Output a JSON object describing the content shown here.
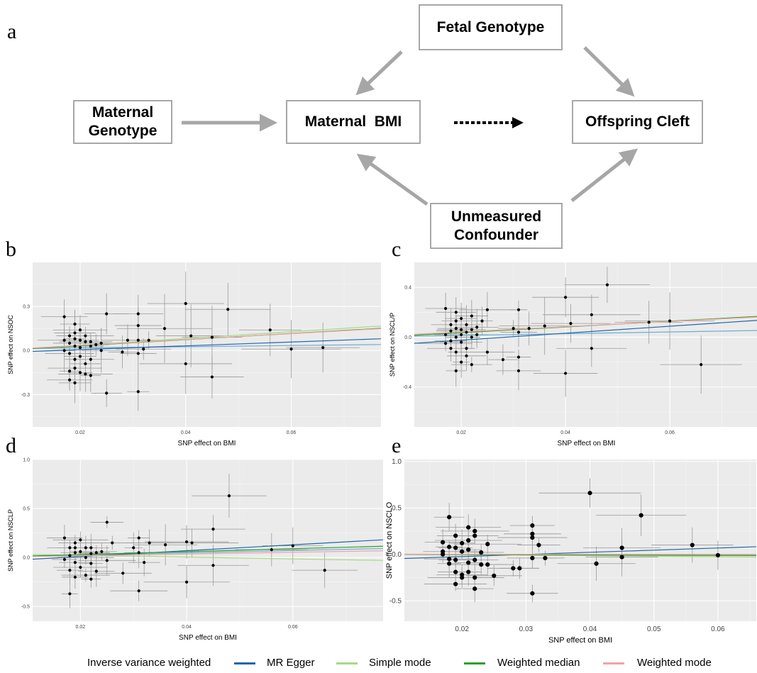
{
  "diagram": {
    "panel_label": "a",
    "nodes": {
      "fetal": "Fetal Genotype",
      "maternal_genotype": "Maternal\nGenotype",
      "maternal_bmi": "Maternal  BMI",
      "offspring": "Offspring Cleft",
      "confounder": "Unmeasured\nConfounder"
    }
  },
  "chart_data": [
    {
      "type": "scatter",
      "panel_label": "b",
      "xlabel": "SNP effect on BMI",
      "ylabel": "SNP effect on NSOC",
      "xlim": [
        0.011,
        0.077
      ],
      "ylim": [
        -0.52,
        0.6
      ],
      "xticks": [
        0.02,
        0.04,
        0.06
      ],
      "xtick_labels": [
        "0.02",
        "0.04",
        "0.06"
      ],
      "yticks": [
        -0.3,
        0.0,
        0.3
      ],
      "ytick_labels": [
        "-0.3",
        "0.0",
        "0.3"
      ],
      "points": [
        [
          0.017,
          0.23
        ],
        [
          0.017,
          0.07
        ],
        [
          0.017,
          0.0
        ],
        [
          0.018,
          0.1
        ],
        [
          0.018,
          0.05
        ],
        [
          0.018,
          -0.02
        ],
        [
          0.018,
          -0.14
        ],
        [
          0.018,
          -0.2
        ],
        [
          0.019,
          0.18
        ],
        [
          0.019,
          0.12
        ],
        [
          0.019,
          0.08
        ],
        [
          0.019,
          0.03
        ],
        [
          0.019,
          -0.06
        ],
        [
          0.019,
          -0.12
        ],
        [
          0.019,
          -0.22
        ],
        [
          0.02,
          0.14
        ],
        [
          0.02,
          0.07
        ],
        [
          0.02,
          0.02
        ],
        [
          0.02,
          -0.04
        ],
        [
          0.02,
          -0.15
        ],
        [
          0.021,
          0.1
        ],
        [
          0.021,
          0.06
        ],
        [
          0.021,
          -0.09
        ],
        [
          0.021,
          -0.16
        ],
        [
          0.022,
          0.06
        ],
        [
          0.022,
          0.03
        ],
        [
          0.022,
          -0.06
        ],
        [
          0.022,
          -0.17
        ],
        [
          0.023,
          0.04
        ],
        [
          0.024,
          0.05
        ],
        [
          0.024,
          0.0
        ],
        [
          0.025,
          0.25
        ],
        [
          0.025,
          -0.29
        ],
        [
          0.028,
          -0.01
        ],
        [
          0.029,
          0.07
        ],
        [
          0.031,
          0.25
        ],
        [
          0.031,
          0.17
        ],
        [
          0.031,
          0.07
        ],
        [
          0.031,
          -0.02
        ],
        [
          0.031,
          -0.28
        ],
        [
          0.032,
          0.01
        ],
        [
          0.033,
          0.07
        ],
        [
          0.036,
          0.15
        ],
        [
          0.04,
          0.32
        ],
        [
          0.04,
          -0.09
        ],
        [
          0.041,
          0.1
        ],
        [
          0.045,
          0.09
        ],
        [
          0.045,
          -0.18
        ],
        [
          0.048,
          0.28
        ],
        [
          0.056,
          0.14
        ],
        [
          0.06,
          0.01
        ],
        [
          0.066,
          0.02
        ]
      ],
      "lines": [
        {
          "method": "Inverse variance weighted",
          "intercept": 0.01,
          "slope": 0.4
        },
        {
          "method": "MR Egger",
          "intercept": -0.02,
          "slope": 1.3
        },
        {
          "method": "Simple mode",
          "intercept": -0.01,
          "slope": 2.3
        },
        {
          "method": "Weighted median",
          "intercept": -0.01,
          "slope": 2.1
        },
        {
          "method": "Weighted mode",
          "intercept": -0.005,
          "slope": 2.0
        }
      ]
    },
    {
      "type": "scatter",
      "panel_label": "c",
      "xlabel": "SNP effect on BMI",
      "ylabel": "SNP effect on NSCL/P",
      "xlim": [
        0.011,
        0.077
      ],
      "ylim": [
        -0.72,
        0.6
      ],
      "xticks": [
        0.02,
        0.04,
        0.06
      ],
      "xtick_labels": [
        "0.02",
        "0.04",
        "0.06"
      ],
      "yticks": [
        -0.4,
        0.0,
        0.4
      ],
      "ytick_labels": [
        "-0.4",
        "0.0",
        "0.4"
      ],
      "points": [
        [
          0.017,
          0.23
        ],
        [
          0.017,
          0.02
        ],
        [
          0.017,
          -0.05
        ],
        [
          0.018,
          0.1
        ],
        [
          0.018,
          0.05
        ],
        [
          0.018,
          -0.03
        ],
        [
          0.018,
          -0.09
        ],
        [
          0.019,
          0.2
        ],
        [
          0.019,
          0.13
        ],
        [
          0.019,
          0.07
        ],
        [
          0.019,
          0.0
        ],
        [
          0.019,
          -0.12
        ],
        [
          0.019,
          -0.27
        ],
        [
          0.02,
          0.15
        ],
        [
          0.02,
          0.06
        ],
        [
          0.02,
          0.02
        ],
        [
          0.02,
          -0.04
        ],
        [
          0.02,
          -0.2
        ],
        [
          0.021,
          0.1
        ],
        [
          0.021,
          0.04
        ],
        [
          0.021,
          -0.09
        ],
        [
          0.021,
          -0.15
        ],
        [
          0.022,
          0.17
        ],
        [
          0.022,
          0.06
        ],
        [
          0.022,
          0.0
        ],
        [
          0.022,
          -0.22
        ],
        [
          0.023,
          0.08
        ],
        [
          0.023,
          0.02
        ],
        [
          0.024,
          0.13
        ],
        [
          0.025,
          0.22
        ],
        [
          0.025,
          -0.12
        ],
        [
          0.028,
          -0.18
        ],
        [
          0.03,
          0.07
        ],
        [
          0.031,
          0.22
        ],
        [
          0.031,
          0.04
        ],
        [
          0.031,
          -0.16
        ],
        [
          0.031,
          -0.27
        ],
        [
          0.033,
          0.07
        ],
        [
          0.036,
          0.09
        ],
        [
          0.04,
          0.32
        ],
        [
          0.04,
          -0.29
        ],
        [
          0.041,
          0.11
        ],
        [
          0.045,
          0.18
        ],
        [
          0.045,
          -0.09
        ],
        [
          0.048,
          0.42
        ],
        [
          0.056,
          0.12
        ],
        [
          0.06,
          0.13
        ],
        [
          0.066,
          -0.22
        ]
      ],
      "lines": [
        {
          "method": "Inverse variance weighted",
          "intercept": 0.0,
          "slope": 0.7
        },
        {
          "method": "MR Egger",
          "intercept": -0.08,
          "slope": 2.8
        },
        {
          "method": "Simple mode",
          "intercept": -0.01,
          "slope": 2.3
        },
        {
          "method": "Weighted median",
          "intercept": -0.01,
          "slope": 2.3
        },
        {
          "method": "Weighted mode",
          "intercept": 0.0,
          "slope": 2.1
        }
      ]
    },
    {
      "type": "scatter",
      "panel_label": "d",
      "xlabel": "SNP effect on BMI",
      "ylabel": "SNP effect on NSCLP",
      "xlim": [
        0.011,
        0.077
      ],
      "ylim": [
        -0.65,
        1.0
      ],
      "xticks": [
        0.02,
        0.04,
        0.06
      ],
      "xtick_labels": [
        "0.02",
        "0.04",
        "0.06"
      ],
      "yticks": [
        -0.5,
        0.0,
        0.5,
        1.0
      ],
      "ytick_labels": [
        "-0.5",
        "0.0",
        "0.5",
        "1.0"
      ],
      "points": [
        [
          0.017,
          0.2
        ],
        [
          0.017,
          -0.02
        ],
        [
          0.018,
          0.1
        ],
        [
          0.018,
          0.02
        ],
        [
          0.018,
          -0.13
        ],
        [
          0.018,
          -0.37
        ],
        [
          0.019,
          0.15
        ],
        [
          0.019,
          0.1
        ],
        [
          0.019,
          0.05
        ],
        [
          0.019,
          -0.05
        ],
        [
          0.019,
          -0.2
        ],
        [
          0.02,
          0.18
        ],
        [
          0.02,
          0.06
        ],
        [
          0.02,
          -0.1
        ],
        [
          0.021,
          0.1
        ],
        [
          0.021,
          0.0
        ],
        [
          0.021,
          -0.18
        ],
        [
          0.022,
          0.1
        ],
        [
          0.022,
          0.04
        ],
        [
          0.022,
          -0.06
        ],
        [
          0.022,
          -0.22
        ],
        [
          0.023,
          0.05
        ],
        [
          0.023,
          -0.14
        ],
        [
          0.024,
          0.06
        ],
        [
          0.025,
          0.36
        ],
        [
          0.025,
          -0.03
        ],
        [
          0.026,
          0.15
        ],
        [
          0.028,
          -0.16
        ],
        [
          0.03,
          0.1
        ],
        [
          0.031,
          0.2
        ],
        [
          0.031,
          0.05
        ],
        [
          0.031,
          -0.34
        ],
        [
          0.032,
          -0.05
        ],
        [
          0.033,
          0.15
        ],
        [
          0.036,
          0.13
        ],
        [
          0.04,
          0.16
        ],
        [
          0.04,
          -0.25
        ],
        [
          0.041,
          0.15
        ],
        [
          0.045,
          0.29
        ],
        [
          0.045,
          -0.08
        ],
        [
          0.048,
          0.63
        ],
        [
          0.056,
          0.08
        ],
        [
          0.06,
          0.12
        ],
        [
          0.066,
          -0.13
        ]
      ],
      "lines": [
        {
          "method": "Inverse variance weighted",
          "intercept": 0.0,
          "slope": 1.2
        },
        {
          "method": "MR Egger",
          "intercept": -0.05,
          "slope": 3.0
        },
        {
          "method": "Simple mode",
          "intercept": 0.04,
          "slope": -0.9
        },
        {
          "method": "Weighted median",
          "intercept": 0.0,
          "slope": 1.5
        },
        {
          "method": "Weighted mode",
          "intercept": 0.0,
          "slope": 0.9
        }
      ]
    },
    {
      "type": "scatter",
      "panel_label": "e",
      "xlabel": "SNP effect on BMI",
      "ylabel": "SNP effect on NSCLO",
      "xlim": [
        0.011,
        0.066
      ],
      "ylim": [
        -0.72,
        1.02
      ],
      "xticks": [
        0.02,
        0.03,
        0.04,
        0.05,
        0.06
      ],
      "xtick_labels": [
        "0.02",
        "0.03",
        "0.04",
        "0.05",
        "0.06"
      ],
      "yticks": [
        -0.5,
        0.0,
        0.5,
        1.0
      ],
      "ytick_labels": [
        "-0.5",
        "0.0",
        "0.5",
        "1.0"
      ],
      "points": [
        [
          0.017,
          0.13
        ],
        [
          0.017,
          0.03
        ],
        [
          0.017,
          0.0
        ],
        [
          0.018,
          0.4
        ],
        [
          0.018,
          0.08
        ],
        [
          0.018,
          -0.05
        ],
        [
          0.018,
          -0.1
        ],
        [
          0.019,
          0.2
        ],
        [
          0.019,
          0.07
        ],
        [
          0.019,
          -0.06
        ],
        [
          0.019,
          -0.19
        ],
        [
          0.019,
          -0.32
        ],
        [
          0.02,
          0.12
        ],
        [
          0.02,
          0.03
        ],
        [
          0.02,
          -0.22
        ],
        [
          0.02,
          -0.25
        ],
        [
          0.021,
          0.29
        ],
        [
          0.021,
          0.15
        ],
        [
          0.021,
          0.05
        ],
        [
          0.021,
          -0.09
        ],
        [
          0.021,
          -0.19
        ],
        [
          0.022,
          0.25
        ],
        [
          0.022,
          0.2
        ],
        [
          0.022,
          -0.06
        ],
        [
          0.022,
          -0.25
        ],
        [
          0.022,
          -0.37
        ],
        [
          0.023,
          0.02
        ],
        [
          0.023,
          -0.11
        ],
        [
          0.024,
          0.11
        ],
        [
          0.024,
          -0.11
        ],
        [
          0.025,
          -0.23
        ],
        [
          0.028,
          -0.15
        ],
        [
          0.029,
          -0.15
        ],
        [
          0.031,
          0.31
        ],
        [
          0.031,
          0.22
        ],
        [
          0.031,
          0.18
        ],
        [
          0.031,
          -0.04
        ],
        [
          0.031,
          -0.42
        ],
        [
          0.032,
          0.1
        ],
        [
          0.033,
          -0.04
        ],
        [
          0.04,
          0.66
        ],
        [
          0.041,
          -0.1
        ],
        [
          0.045,
          0.07
        ],
        [
          0.045,
          -0.03
        ],
        [
          0.048,
          0.42
        ],
        [
          0.056,
          0.1
        ],
        [
          0.06,
          -0.01
        ]
      ],
      "lines": [
        {
          "method": "Inverse variance weighted",
          "intercept": 0.0,
          "slope": 0.0
        },
        {
          "method": "MR Egger",
          "intercept": -0.07,
          "slope": 2.3
        },
        {
          "method": "Simple mode",
          "intercept": 0.01,
          "slope": -0.6
        },
        {
          "method": "Weighted median",
          "intercept": 0.0,
          "slope": -0.2
        },
        {
          "method": "Weighted mode",
          "intercept": 0.0,
          "slope": 0.0
        }
      ]
    }
  ],
  "legend": {
    "items": [
      {
        "label": "Inverse variance weighted",
        "color": "#6baed6"
      },
      {
        "label": "MR Egger",
        "color": "#2166ac"
      },
      {
        "label": "Simple mode",
        "color": "#a6db85"
      },
      {
        "label": "Weighted median",
        "color": "#2ca02c"
      },
      {
        "label": "Weighted mode",
        "color": "#f4a3a3"
      }
    ]
  },
  "colors": {
    "panel_background": "#ebebeb",
    "grid": "#ffffff",
    "point": "#000000",
    "error_bar": "#9a9a9a",
    "node_border": "#a8a8a8",
    "arrow": "#a6a6a6"
  }
}
